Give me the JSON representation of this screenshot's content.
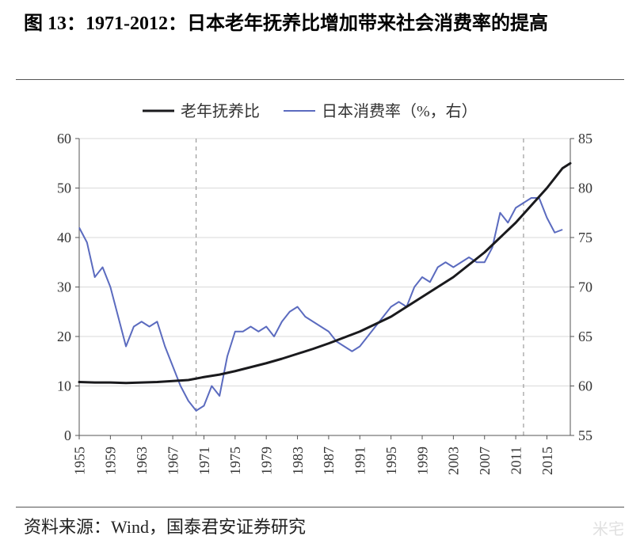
{
  "title": "图 13：1971-2012：日本老年抚养比增加带来社会消费率的提高",
  "source": "资料来源：Wind，国泰君安证券研究",
  "watermark": "米宅",
  "chart": {
    "type": "line-dual-axis",
    "background_color": "#ffffff",
    "grid_color": "#d9d9d9",
    "axis_color": "#555555",
    "legend": {
      "items": [
        {
          "label": "老年抚养比",
          "color": "#1a1a1d",
          "width": 3
        },
        {
          "label": "日本消费率（%，右）",
          "color": "#5b6bbf",
          "width": 2
        }
      ],
      "fontsize": 20
    },
    "x": {
      "ticks": [
        1955,
        1959,
        1963,
        1967,
        1971,
        1975,
        1979,
        1983,
        1987,
        1991,
        1995,
        1999,
        2003,
        2007,
        2011,
        2015
      ],
      "min": 1955,
      "max": 2018,
      "rotation": -90,
      "fontsize": 18
    },
    "y_left": {
      "min": 0,
      "max": 60,
      "step": 10,
      "fontsize": 18
    },
    "y_right": {
      "min": 55,
      "max": 85,
      "step": 5,
      "fontsize": 18
    },
    "ref_lines": {
      "color": "#888888",
      "dash": "5,5",
      "x_values": [
        1970,
        2012
      ]
    },
    "series1": {
      "name": "老年抚养比",
      "axis": "left",
      "color": "#1a1a1d",
      "width": 3,
      "data": [
        [
          1955,
          10.8
        ],
        [
          1957,
          10.7
        ],
        [
          1959,
          10.7
        ],
        [
          1961,
          10.6
        ],
        [
          1963,
          10.7
        ],
        [
          1965,
          10.8
        ],
        [
          1967,
          11.0
        ],
        [
          1969,
          11.2
        ],
        [
          1971,
          11.8
        ],
        [
          1973,
          12.3
        ],
        [
          1975,
          13.0
        ],
        [
          1977,
          13.8
        ],
        [
          1979,
          14.6
        ],
        [
          1981,
          15.5
        ],
        [
          1983,
          16.5
        ],
        [
          1985,
          17.5
        ],
        [
          1987,
          18.6
        ],
        [
          1989,
          19.8
        ],
        [
          1991,
          21.0
        ],
        [
          1993,
          22.5
        ],
        [
          1995,
          24.0
        ],
        [
          1997,
          26.0
        ],
        [
          1999,
          28.0
        ],
        [
          2001,
          30.0
        ],
        [
          2003,
          32.0
        ],
        [
          2005,
          34.5
        ],
        [
          2007,
          37.0
        ],
        [
          2009,
          40.0
        ],
        [
          2011,
          43.0
        ],
        [
          2013,
          46.5
        ],
        [
          2015,
          50.0
        ],
        [
          2017,
          54.0
        ],
        [
          2018,
          55.0
        ]
      ]
    },
    "series2": {
      "name": "日本消费率",
      "axis": "right",
      "color": "#5b6bbf",
      "width": 2,
      "data": [
        [
          1955,
          76.0
        ],
        [
          1956,
          74.5
        ],
        [
          1957,
          71.0
        ],
        [
          1958,
          72.0
        ],
        [
          1959,
          70.0
        ],
        [
          1960,
          67.0
        ],
        [
          1961,
          64.0
        ],
        [
          1962,
          66.0
        ],
        [
          1963,
          66.5
        ],
        [
          1964,
          66.0
        ],
        [
          1965,
          66.5
        ],
        [
          1966,
          64.0
        ],
        [
          1967,
          62.0
        ],
        [
          1968,
          60.0
        ],
        [
          1969,
          58.5
        ],
        [
          1970,
          57.5
        ],
        [
          1971,
          58.0
        ],
        [
          1972,
          60.0
        ],
        [
          1973,
          59.0
        ],
        [
          1974,
          63.0
        ],
        [
          1975,
          65.5
        ],
        [
          1976,
          65.5
        ],
        [
          1977,
          66.0
        ],
        [
          1978,
          65.5
        ],
        [
          1979,
          66.0
        ],
        [
          1980,
          65.0
        ],
        [
          1981,
          66.5
        ],
        [
          1982,
          67.5
        ],
        [
          1983,
          68.0
        ],
        [
          1984,
          67.0
        ],
        [
          1985,
          66.5
        ],
        [
          1986,
          66.0
        ],
        [
          1987,
          65.5
        ],
        [
          1988,
          64.5
        ],
        [
          1989,
          64.0
        ],
        [
          1990,
          63.5
        ],
        [
          1991,
          64.0
        ],
        [
          1992,
          65.0
        ],
        [
          1993,
          66.0
        ],
        [
          1994,
          67.0
        ],
        [
          1995,
          68.0
        ],
        [
          1996,
          68.5
        ],
        [
          1997,
          68.0
        ],
        [
          1998,
          70.0
        ],
        [
          1999,
          71.0
        ],
        [
          2000,
          70.5
        ],
        [
          2001,
          72.0
        ],
        [
          2002,
          72.5
        ],
        [
          2003,
          72.0
        ],
        [
          2004,
          72.5
        ],
        [
          2005,
          73.0
        ],
        [
          2006,
          72.5
        ],
        [
          2007,
          72.5
        ],
        [
          2008,
          74.0
        ],
        [
          2009,
          77.5
        ],
        [
          2010,
          76.5
        ],
        [
          2011,
          78.0
        ],
        [
          2012,
          78.5
        ],
        [
          2013,
          79.0
        ],
        [
          2014,
          79.0
        ],
        [
          2015,
          77.0
        ],
        [
          2016,
          75.5
        ],
        [
          2017,
          75.8
        ]
      ]
    }
  }
}
